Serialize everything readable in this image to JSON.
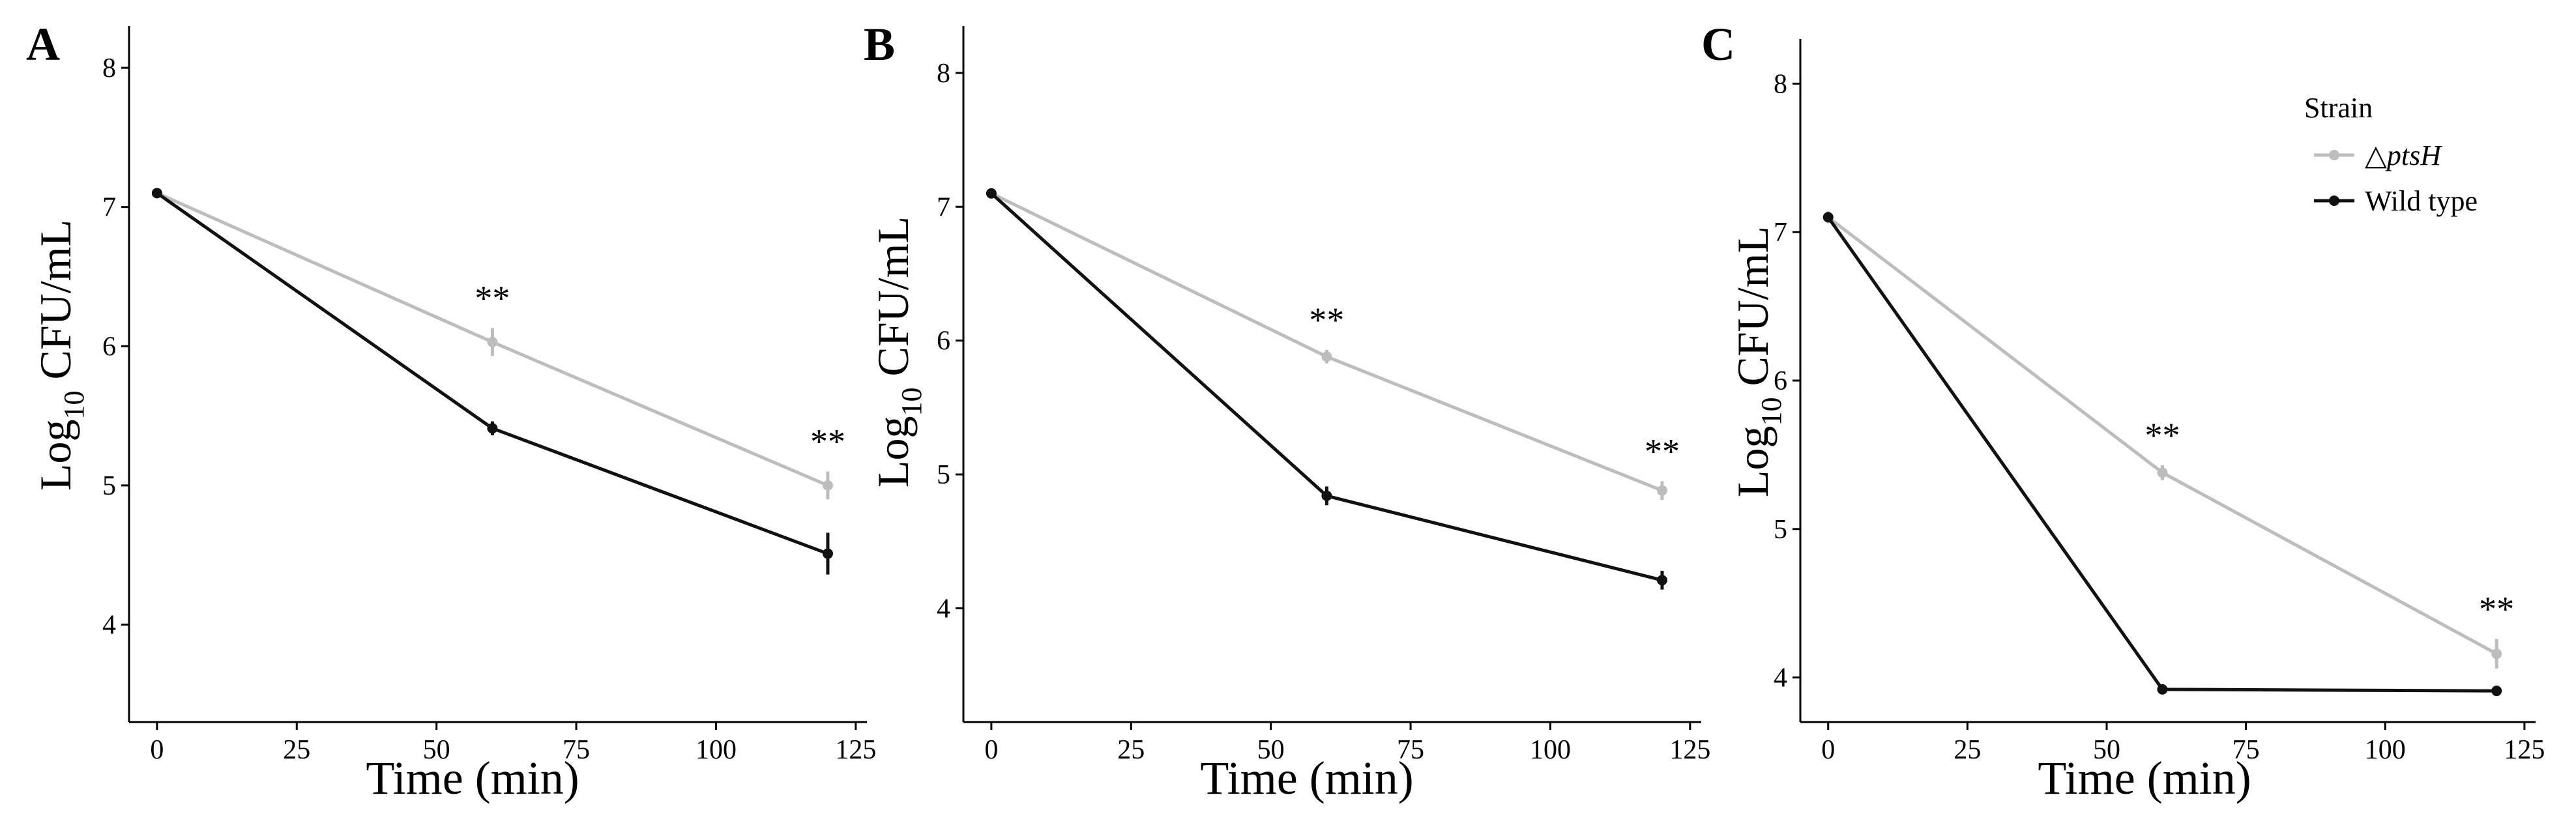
{
  "colors": {
    "ptsH": "#bdbdbd",
    "wildtype": "#111111",
    "axis": "#000000"
  },
  "legend": {
    "title": "Strain",
    "entries": [
      {
        "symbol": "△",
        "label": "ptsH",
        "color": "#bdbdbd"
      },
      {
        "label": "Wild type",
        "color": "#111111"
      }
    ]
  },
  "chart_data": [
    {
      "type": "line",
      "panel": "A",
      "xlabel": "Time (min)",
      "ylabel": {
        "main": "Log",
        "sub": "10",
        "rest": " CFU/mL"
      },
      "xlim": [
        -5,
        127
      ],
      "ylim": [
        3.3,
        8.3
      ],
      "xticks": [
        0,
        25,
        50,
        75,
        100,
        125
      ],
      "yticks": [
        4,
        5,
        6,
        7,
        8
      ],
      "x": [
        0,
        60,
        120
      ],
      "series": [
        {
          "name": "△ptsH",
          "key": "ptsH",
          "values": [
            7.1,
            6.03,
            5.0
          ],
          "errors": [
            0.03,
            0.1,
            0.1
          ]
        },
        {
          "name": "Wild type",
          "key": "wildtype",
          "values": [
            7.1,
            5.41,
            4.51
          ],
          "errors": [
            0.03,
            0.05,
            0.15
          ]
        }
      ],
      "annotations": [
        {
          "x": 60,
          "text": "**"
        },
        {
          "x": 120,
          "text": "**"
        }
      ]
    },
    {
      "type": "line",
      "panel": "B",
      "xlabel": "Time (min)",
      "ylabel": {
        "main": "Log",
        "sub": "10",
        "rest": " CFU/mL"
      },
      "xlim": [
        -5,
        127
      ],
      "ylim": [
        3.15,
        8.35
      ],
      "xticks": [
        0,
        25,
        50,
        75,
        100,
        125
      ],
      "yticks": [
        4,
        5,
        6,
        7,
        8
      ],
      "x": [
        0,
        60,
        120
      ],
      "series": [
        {
          "name": "△ptsH",
          "key": "ptsH",
          "values": [
            7.1,
            5.88,
            4.88
          ],
          "errors": [
            0.03,
            0.05,
            0.07
          ]
        },
        {
          "name": "Wild type",
          "key": "wildtype",
          "values": [
            7.1,
            4.84,
            4.21
          ],
          "errors": [
            0.03,
            0.07,
            0.07
          ]
        }
      ],
      "annotations": [
        {
          "x": 60,
          "text": "**"
        },
        {
          "x": 120,
          "text": "**"
        }
      ]
    },
    {
      "type": "line",
      "panel": "C",
      "xlabel": "Time (min)",
      "ylabel": {
        "main": "Log",
        "sub": "10",
        "rest": " CFU/mL"
      },
      "xlim": [
        -5,
        127
      ],
      "ylim": [
        3.7,
        8.3
      ],
      "xticks": [
        0,
        25,
        50,
        75,
        100,
        125
      ],
      "yticks": [
        4,
        5,
        6,
        7,
        8
      ],
      "x": [
        0,
        60,
        120
      ],
      "series": [
        {
          "name": "△ptsH",
          "key": "ptsH",
          "values": [
            7.1,
            5.38,
            4.16
          ],
          "errors": [
            0.04,
            0.05,
            0.1
          ]
        },
        {
          "name": "Wild type",
          "key": "wildtype",
          "values": [
            7.1,
            3.92,
            3.91
          ],
          "errors": [
            0.03,
            0.01,
            0.01
          ]
        }
      ],
      "annotations": [
        {
          "x": 60,
          "text": "**"
        },
        {
          "x": 120,
          "text": "**"
        }
      ]
    }
  ]
}
